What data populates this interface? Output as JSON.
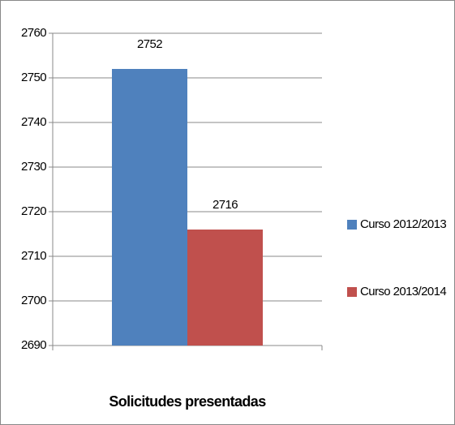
{
  "chart_data": {
    "type": "bar",
    "categories": [
      "Solicitudes presentadas"
    ],
    "series": [
      {
        "name": "Curso 2012/2013",
        "color": "#4f81bd",
        "values": [
          2752
        ]
      },
      {
        "name": "Curso 2013/2014",
        "color": "#c0504d",
        "values": [
          2716
        ]
      }
    ],
    "ylim": [
      2690,
      2760
    ],
    "yticks": [
      2690,
      2700,
      2710,
      2720,
      2730,
      2740,
      2750,
      2760
    ],
    "grid": true,
    "legend": "right"
  }
}
